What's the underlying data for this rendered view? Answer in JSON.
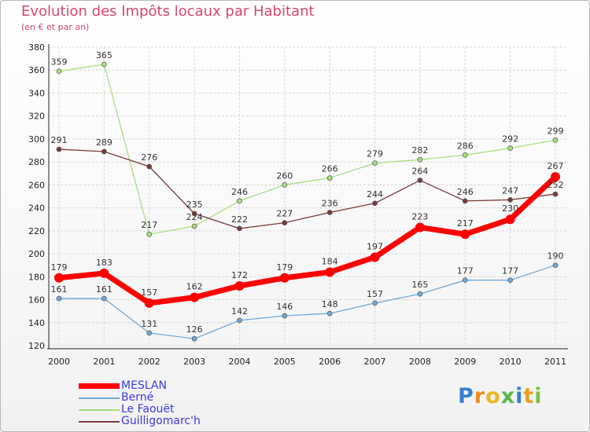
{
  "header": {
    "title": "Evolution des Impôts locaux par Habitant",
    "subtitle": "(en € et par an)"
  },
  "brand": {
    "text": "Proxiti",
    "letter_colors": [
      "#3a7fd0",
      "#f08a24",
      "#f0b323",
      "#52b848",
      "#3a7fd0",
      "#e8a020",
      "#7ac142"
    ]
  },
  "chart_data": {
    "type": "line",
    "x": [
      "2000",
      "2001",
      "2002",
      "2003",
      "2004",
      "2005",
      "2006",
      "2007",
      "2008",
      "2009",
      "2010",
      "2011"
    ],
    "ylim": [
      120,
      380
    ],
    "yticks": [
      120,
      140,
      160,
      180,
      200,
      220,
      240,
      260,
      280,
      300,
      320,
      340,
      360,
      380
    ],
    "grid": true,
    "legend_position": "bottom-left",
    "series": [
      {
        "name": "MESLAN",
        "color": "#ff0000",
        "values": [
          179,
          183,
          157,
          162,
          172,
          179,
          184,
          197,
          223,
          217,
          230,
          267
        ]
      },
      {
        "name": "Berné",
        "color": "#6fa8d8",
        "values": [
          161,
          161,
          131,
          126,
          142,
          146,
          148,
          157,
          165,
          177,
          177,
          190
        ]
      },
      {
        "name": "Le Faouët",
        "color": "#a6e07f",
        "values": [
          359,
          365,
          217,
          224,
          246,
          260,
          266,
          279,
          282,
          286,
          292,
          299
        ]
      },
      {
        "name": "Guilligomarc'h",
        "color": "#7a3a3a",
        "values": [
          291,
          289,
          276,
          235,
          222,
          227,
          236,
          244,
          264,
          246,
          247,
          252
        ]
      }
    ]
  }
}
